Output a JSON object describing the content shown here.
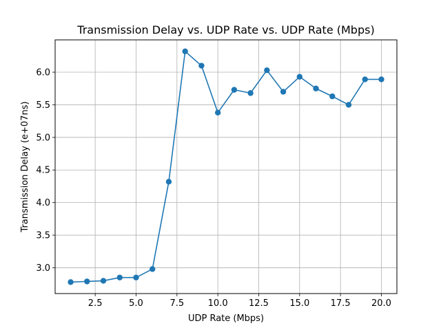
{
  "chart_data": {
    "type": "line",
    "title": "Transmission Delay vs. UDP Rate vs. UDP Rate (Mbps)",
    "xlabel": "UDP Rate (Mbps)",
    "ylabel": "Transmission Delay (e+07ns)",
    "xlim": [
      0.05,
      20.95
    ],
    "ylim": [
      2.604,
      6.496
    ],
    "xticks": [
      2.5,
      5.0,
      7.5,
      10.0,
      12.5,
      15.0,
      17.5,
      20.0
    ],
    "xtick_labels": [
      "2.5",
      "5.0",
      "7.5",
      "10.0",
      "12.5",
      "15.0",
      "17.5",
      "20.0"
    ],
    "yticks": [
      3.0,
      3.5,
      4.0,
      4.5,
      5.0,
      5.5,
      6.0
    ],
    "ytick_labels": [
      "3.0",
      "3.5",
      "4.0",
      "4.5",
      "5.0",
      "5.5",
      "6.0"
    ],
    "grid": true,
    "marker": "circle",
    "color": "#1f77b4",
    "x": [
      1,
      2,
      3,
      4,
      5,
      6,
      7,
      8,
      9,
      10,
      11,
      12,
      13,
      14,
      15,
      16,
      17,
      18,
      19,
      20
    ],
    "y": [
      2.78,
      2.79,
      2.8,
      2.85,
      2.85,
      2.98,
      4.32,
      6.32,
      6.1,
      5.38,
      5.73,
      5.68,
      6.03,
      5.7,
      5.93,
      5.75,
      5.63,
      5.5,
      5.89,
      5.89
    ]
  }
}
